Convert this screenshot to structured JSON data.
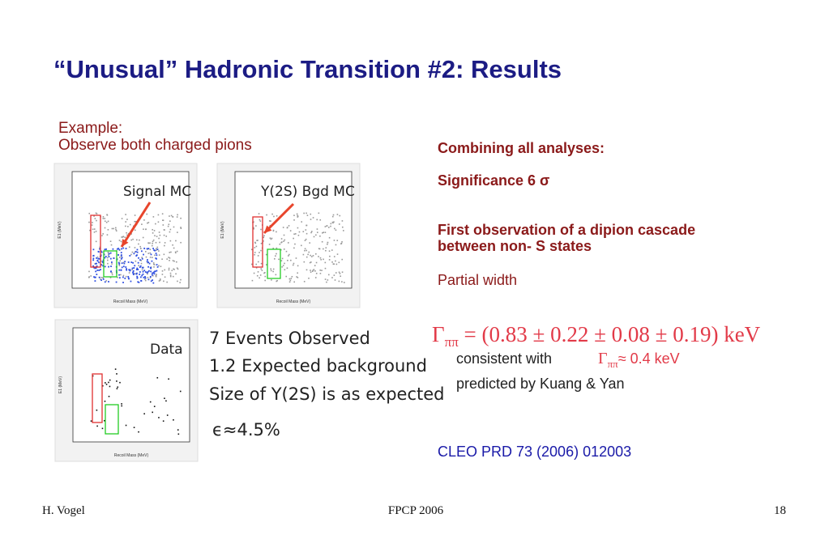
{
  "title": "“Unusual” Hadronic Transition #2:  Results",
  "left": {
    "line1": "Example:",
    "line2": "Observe both charged pions"
  },
  "panels": [
    {
      "label": "Signal MC"
    },
    {
      "label": "Υ(2S) Bgd MC"
    },
    {
      "label": "Data"
    }
  ],
  "plot_axes": {
    "x_label": "Recoil Mass (MeV)",
    "y_label": "E1 (MeV)"
  },
  "annotations": [
    "7 Events Observed",
    "1.2 Expected background",
    "Size of Υ(2S) is as expected",
    "ϵ≈4.5%"
  ],
  "right": {
    "heading": "Combining all analyses:",
    "significance": "Significance   6 σ",
    "observation_1": "First observation of a dipion cascade",
    "observation_2": "between non-  S states",
    "partial_width": "Partial width",
    "formula": {
      "symbol": "Γ",
      "sub": "ππ",
      "rest": " = (0.83 ± 0.22 ± 0.08 ± 0.19) keV"
    },
    "consistent": {
      "text": "consistent with",
      "symbol": "Γ",
      "sub": "ππ",
      "rest": "≈ 0.4 keV"
    },
    "predicted": "predicted by Kuang & Yan",
    "reference": "CLEO  PRD 73 (2006) 012003"
  },
  "footer": {
    "author": "H. Vogel",
    "event": "FPCP 2006",
    "page": "18"
  }
}
